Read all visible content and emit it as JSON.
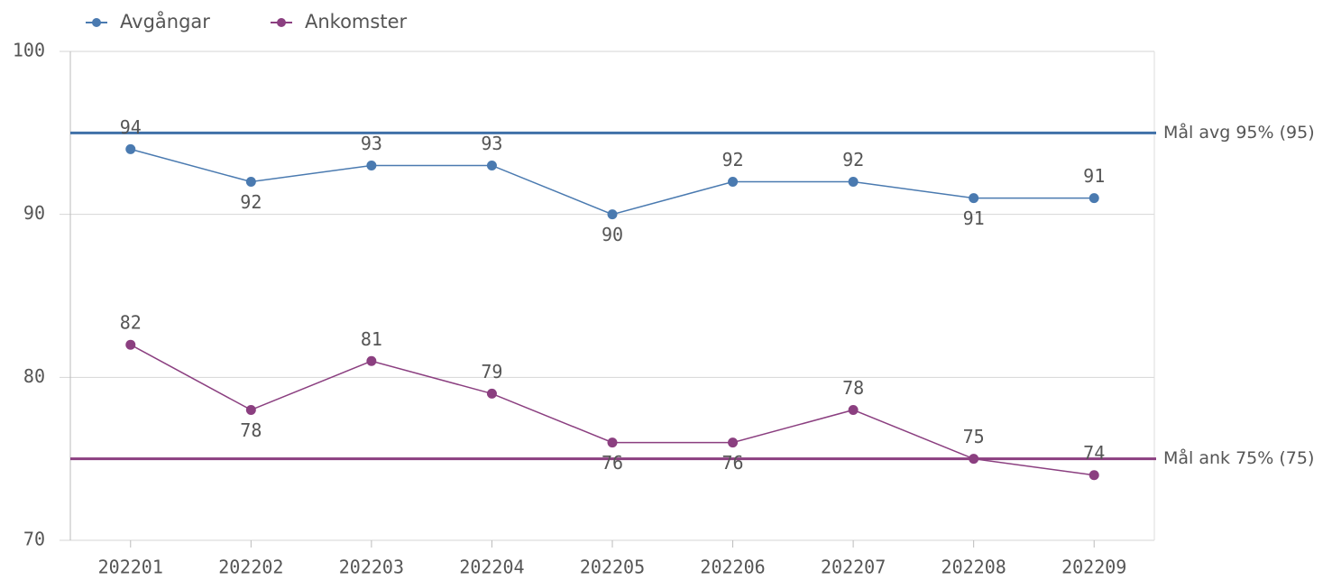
{
  "chart_data": {
    "type": "line",
    "categories": [
      "202201",
      "202202",
      "202203",
      "202204",
      "202205",
      "202206",
      "202207",
      "202208",
      "202209"
    ],
    "series": [
      {
        "name": "Avgångar",
        "color": "#4a7ab0",
        "values": [
          94,
          92,
          93,
          93,
          90,
          92,
          92,
          91,
          91
        ]
      },
      {
        "name": "Ankomster",
        "color": "#8b3f80",
        "values": [
          82,
          78,
          81,
          79,
          76,
          76,
          78,
          75,
          74
        ]
      }
    ],
    "reference_lines": [
      {
        "label": "Mål avg 95% (95)",
        "value": 95,
        "color": "#3f70a8"
      },
      {
        "label": "Mål ank 75% (75)",
        "value": 75,
        "color": "#8b3f80"
      }
    ],
    "ylim": [
      70,
      100
    ],
    "yticks": [
      70,
      80,
      90,
      100
    ],
    "grid": true,
    "legend": "top-left"
  }
}
